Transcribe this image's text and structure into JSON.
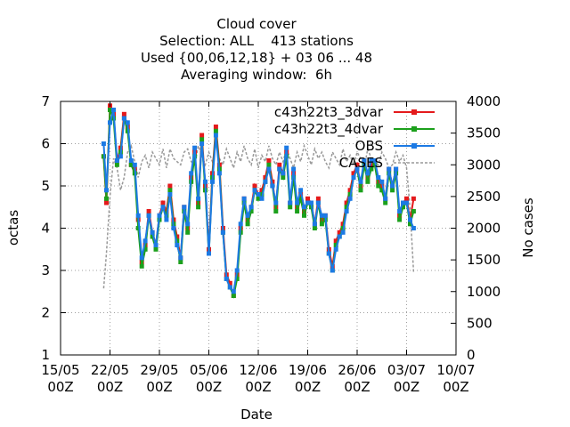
{
  "chart_data": {
    "type": "line",
    "title_lines": [
      "Cloud cover",
      "Selection: ALL    413 stations",
      "Used {00,06,12,18} + 03 06 ... 48",
      "Averaging window:  6h"
    ],
    "xlabel": "Date",
    "ylabel": "octas",
    "y2label": "No cases",
    "xlim": [
      0,
      56
    ],
    "ylim": [
      1,
      7
    ],
    "y2lim": [
      0,
      4000
    ],
    "x_tick_labels": [
      [
        "15/05",
        "00Z"
      ],
      [
        "22/05",
        "00Z"
      ],
      [
        "29/05",
        "00Z"
      ],
      [
        "05/06",
        "00Z"
      ],
      [
        "12/06",
        "00Z"
      ],
      [
        "19/06",
        "00Z"
      ],
      [
        "26/06",
        "00Z"
      ],
      [
        "03/07",
        "00Z"
      ],
      [
        "10/07",
        "00Z"
      ]
    ],
    "y_ticks": [
      1,
      2,
      3,
      4,
      5,
      6,
      7
    ],
    "y2_ticks": [
      0,
      500,
      1000,
      1500,
      2000,
      2500,
      3000,
      3500,
      4000
    ],
    "grid": true,
    "legend_position": "top-right",
    "series_anchor_x": [
      6.1,
      6.5,
      7,
      7.5,
      8,
      8.5,
      9,
      9.5,
      10,
      10.5,
      11,
      11.5,
      12,
      12.5,
      13,
      13.5,
      14,
      14.5,
      15,
      15.5,
      16,
      16.5,
      17,
      17.5,
      18,
      18.5,
      19,
      19.5,
      20,
      20.5,
      21,
      21.5,
      22,
      22.5,
      23,
      23.5,
      24,
      24.5,
      25,
      25.5,
      26,
      26.5,
      27,
      27.5,
      28,
      28.5,
      29,
      29.5,
      30,
      30.5,
      31,
      31.5,
      32,
      32.5,
      33,
      33.5,
      34,
      34.5,
      35,
      35.5,
      36,
      36.5,
      37,
      37.5,
      38,
      38.5,
      39,
      39.5,
      40,
      40.5,
      41,
      41.5,
      42,
      42.5,
      43,
      43.5,
      44,
      44.5,
      45,
      45.5,
      46,
      46.5,
      47,
      47.5,
      48,
      48.5,
      49,
      49.5,
      50
    ],
    "series": [
      {
        "name": "c43h22t3_3dvar",
        "color": "#e41a1c",
        "marker": "square",
        "axis": "left",
        "values": [
          5.7,
          4.6,
          6.9,
          6.7,
          5.6,
          5.9,
          6.7,
          6.4,
          5.5,
          5.4,
          4.2,
          3.2,
          3.6,
          4.4,
          3.9,
          3.6,
          4.3,
          4.6,
          4.4,
          5.0,
          4.2,
          3.8,
          3.3,
          4.5,
          4.0,
          5.2,
          5.8,
          4.6,
          6.2,
          5.0,
          3.5,
          5.3,
          6.4,
          5.5,
          4.0,
          2.9,
          2.7,
          2.4,
          2.9,
          4.0,
          4.7,
          4.2,
          4.5,
          5.0,
          4.8,
          4.9,
          5.2,
          5.6,
          5.1,
          4.5,
          5.5,
          5.3,
          5.8,
          4.6,
          5.3,
          4.5,
          4.8,
          4.4,
          4.7,
          4.6,
          4.1,
          4.7,
          4.2,
          4.3,
          3.5,
          3.1,
          3.7,
          3.9,
          4.1,
          4.6,
          4.9,
          5.3,
          5.5,
          5.0,
          5.6,
          5.2,
          5.5,
          5.6,
          5.1,
          5.0,
          4.7,
          5.4,
          5.0,
          5.4,
          4.3,
          4.6,
          4.7,
          4.2,
          4.7
        ]
      },
      {
        "name": "c43h22t3_4dvar",
        "color": "#1ca01c",
        "marker": "square",
        "axis": "left",
        "values": [
          5.7,
          4.7,
          6.8,
          6.6,
          5.5,
          5.8,
          6.6,
          6.3,
          5.5,
          5.3,
          4.0,
          3.1,
          3.5,
          4.3,
          3.8,
          3.5,
          4.2,
          4.5,
          4.3,
          4.9,
          4.1,
          3.7,
          3.2,
          4.4,
          3.9,
          5.1,
          5.7,
          4.5,
          6.1,
          4.9,
          3.4,
          5.2,
          6.3,
          5.4,
          3.9,
          2.8,
          2.6,
          2.4,
          2.8,
          3.9,
          4.6,
          4.1,
          4.4,
          4.9,
          4.7,
          4.8,
          5.1,
          5.5,
          5.0,
          4.4,
          5.4,
          5.2,
          5.7,
          4.5,
          5.2,
          4.4,
          4.7,
          4.3,
          4.6,
          4.5,
          4.0,
          4.6,
          4.1,
          4.2,
          3.4,
          3.0,
          3.6,
          3.8,
          4.0,
          4.5,
          4.8,
          5.2,
          5.4,
          4.9,
          5.5,
          5.1,
          5.4,
          5.5,
          5.0,
          4.9,
          4.6,
          5.3,
          4.9,
          5.3,
          4.2,
          4.5,
          4.6,
          4.1,
          4.4
        ]
      },
      {
        "name": "OBS",
        "color": "#1c7ae4",
        "marker": "square",
        "axis": "left",
        "values": [
          6.0,
          4.9,
          6.5,
          6.8,
          5.6,
          5.7,
          6.6,
          6.5,
          5.6,
          5.5,
          4.3,
          3.3,
          3.7,
          4.3,
          3.9,
          3.6,
          4.3,
          4.5,
          4.2,
          4.8,
          4.0,
          3.6,
          3.3,
          4.5,
          4.1,
          5.3,
          5.9,
          4.7,
          6.0,
          5.1,
          3.4,
          5.1,
          6.2,
          5.3,
          3.9,
          2.8,
          2.6,
          2.5,
          3.0,
          4.1,
          4.7,
          4.3,
          4.5,
          4.9,
          4.8,
          4.7,
          5.1,
          5.4,
          5.0,
          4.6,
          5.4,
          5.3,
          5.9,
          4.6,
          5.4,
          4.6,
          4.9,
          4.5,
          4.6,
          4.6,
          4.1,
          4.6,
          4.3,
          4.3,
          3.4,
          3.0,
          3.5,
          3.8,
          3.9,
          4.4,
          4.7,
          5.2,
          5.4,
          5.1,
          5.6,
          5.3,
          5.6,
          5.6,
          5.2,
          5.1,
          4.7,
          5.4,
          5.0,
          5.4,
          4.4,
          4.6,
          4.6,
          4.2,
          4.0
        ]
      },
      {
        "name": "CASES",
        "color": "#999999",
        "marker": "none",
        "axis": "right",
        "values": [
          1050,
          1600,
          2500,
          3100,
          2950,
          2600,
          2800,
          3200,
          3300,
          3050,
          2800,
          3050,
          3150,
          2950,
          3200,
          3100,
          3000,
          3250,
          2950,
          3250,
          3100,
          3050,
          3000,
          3200,
          3250,
          3050,
          3000,
          3300,
          3150,
          3000,
          3200,
          3050,
          3300,
          3100,
          3000,
          3250,
          3100,
          2950,
          3200,
          3050,
          3300,
          3100,
          3000,
          3250,
          2950,
          3150,
          3050,
          3300,
          3100,
          3000,
          3200,
          3050,
          3250,
          3100,
          2950,
          3200,
          3050,
          3300,
          3150,
          3000,
          3250,
          3100,
          3200,
          3050,
          2950,
          3200,
          3100,
          3000,
          3250,
          3050,
          3150,
          3000,
          3200,
          3100,
          2950,
          3250,
          3100,
          3050,
          3000,
          3200,
          3100,
          2950,
          3000,
          3200,
          3050,
          3150,
          2950,
          2300,
          1300
        ]
      }
    ]
  }
}
